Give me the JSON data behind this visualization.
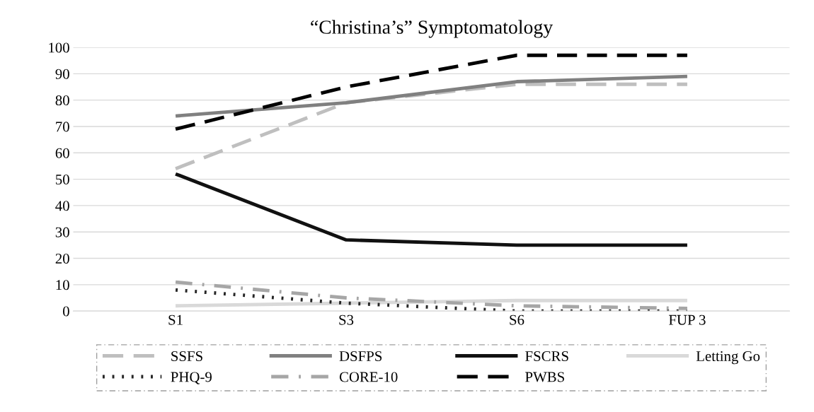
{
  "chart_data": {
    "type": "line",
    "title": "“Christina’s” Symptomatology",
    "categories": [
      "S1",
      "S3",
      "S6",
      "FUP 3"
    ],
    "ylim": [
      0,
      100
    ],
    "yticks": [
      0,
      10,
      20,
      30,
      40,
      50,
      60,
      70,
      80,
      90,
      100
    ],
    "grid": "y",
    "legend": "bottom",
    "marker": "none",
    "series": [
      {
        "name": "SSFS",
        "color": "#bfbfbf",
        "line_style": "dashed",
        "values": [
          54,
          79,
          86,
          86
        ]
      },
      {
        "name": "DSFPS",
        "color": "#808080",
        "line_style": "solid",
        "values": [
          74,
          79,
          87,
          89
        ]
      },
      {
        "name": "FSCRS",
        "color": "#111111",
        "line_style": "solid",
        "values": [
          52,
          27,
          25,
          25
        ]
      },
      {
        "name": "Letting Go",
        "color": "#d9d9d9",
        "line_style": "solid",
        "values": [
          2,
          3,
          4,
          4
        ]
      },
      {
        "name": "PHQ-9",
        "color": "#262626",
        "line_style": "dotted",
        "values": [
          8,
          3,
          0,
          0
        ]
      },
      {
        "name": "CORE-10",
        "color": "#a6a6a6",
        "line_style": "dashdot",
        "values": [
          11,
          5,
          2,
          1
        ]
      },
      {
        "name": "PWBS",
        "color": "#000000",
        "line_style": "dashed",
        "values": [
          69,
          85,
          97,
          97
        ]
      }
    ]
  }
}
